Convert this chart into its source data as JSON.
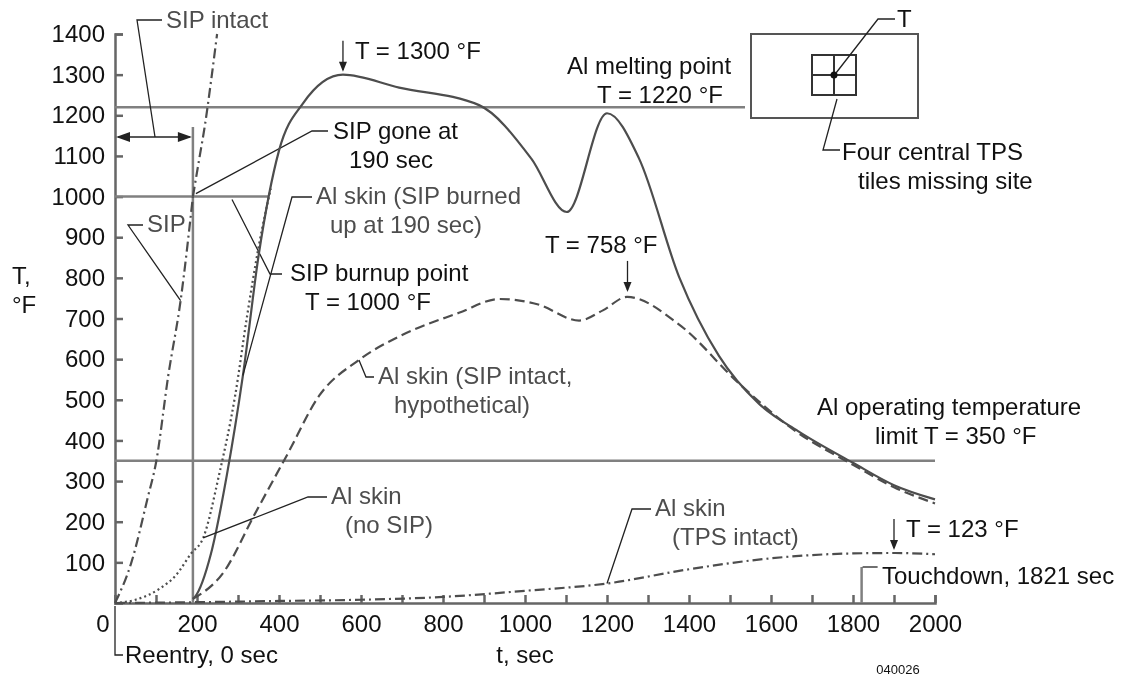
{
  "chart_data": {
    "type": "line",
    "xlabel": "t, sec",
    "ylabel": "T, °F",
    "xlim": [
      0,
      2000
    ],
    "ylim": [
      0,
      1400
    ],
    "xticks": [
      0,
      {
        "value": 100,
        "label": null
      },
      200,
      {
        "value": 300,
        "label": null
      },
      400,
      {
        "value": 500,
        "label": null
      },
      600,
      {
        "value": 700,
        "label": null
      },
      800,
      {
        "value": 900,
        "label": null
      },
      1000,
      {
        "value": 1100,
        "label": null
      },
      1200,
      {
        "value": 1300,
        "label": null
      },
      1400,
      {
        "value": 1500,
        "label": null
      },
      1600,
      {
        "value": 1700,
        "label": null
      },
      1800,
      {
        "value": 1900,
        "label": null
      },
      2000
    ],
    "yticks": [
      {
        "value": 0,
        "label": null
      },
      100,
      200,
      300,
      400,
      500,
      600,
      700,
      800,
      900,
      1000,
      1100,
      1200,
      1300,
      1400
    ],
    "grid": false,
    "legend": false,
    "series": [
      {
        "name": "SIP",
        "color": "#4d4d4d",
        "line_style": "dashdot",
        "x": [
          0,
          40,
          80,
          100,
          130,
          160,
          190
        ],
        "values": [
          0,
          100,
          260,
          345,
          560,
          744,
          1000
        ]
      },
      {
        "name": "SIP intact",
        "color": "#4d4d4d",
        "line_style": "dashdot",
        "x": [
          190,
          205,
          220,
          235,
          249
        ],
        "values": [
          1000,
          1090,
          1180,
          1290,
          1400
        ]
      },
      {
        "name": "Al skin (no SIP)",
        "color": "#4d4d4d",
        "line_style": "dotted",
        "x": [
          0,
          50,
          107,
          150,
          185,
          215,
          254,
          293,
          322,
          351,
          380
        ],
        "values": [
          0,
          8,
          34,
          70,
          121,
          160,
          316,
          510,
          705,
          880,
          1020
        ]
      },
      {
        "name": "Al skin (SIP burned up at 190 sec)",
        "color": "#4d4d4d",
        "line_style": "solid",
        "x": [
          190,
          195,
          234,
          273,
          312,
          351,
          400,
          459,
          556,
          693,
          888,
          1015,
          1102,
          1200,
          1278,
          1376,
          1473,
          1571,
          1666,
          1800,
          1900,
          2000
        ],
        "values": [
          10,
          15,
          121,
          316,
          560,
          860,
          1113,
          1230,
          1300,
          1268,
          1225,
          1094,
          962,
          1205,
          1094,
          802,
          608,
          490,
          423,
          345,
          290,
          255
        ]
      },
      {
        "name": "Al skin (SIP intact, hypothetical)",
        "color": "#4d4d4d",
        "line_style": "dashed",
        "x": [
          190,
          263,
          341,
          420,
          498,
          595,
          693,
          839,
          937,
          1030,
          1132,
          1190,
          1249,
          1376,
          1522,
          1650,
          1800,
          1900,
          2000
        ],
        "values": [
          10,
          73,
          219,
          365,
          510,
          598,
          656,
          714,
          748,
          735,
          695,
          720,
          753,
          685,
          540,
          430,
          340,
          285,
          245
        ]
      },
      {
        "name": "Al skin (TPS intact)",
        "color": "#4d4d4d",
        "line_style": "dashdot",
        "x": [
          0,
          200,
          400,
          600,
          800,
          1000,
          1200,
          1400,
          1600,
          1800,
          1900,
          2000
        ],
        "values": [
          0,
          2,
          5,
          8,
          15,
          30,
          48,
          83,
          110,
          122,
          123,
          120
        ]
      }
    ],
    "ref_lines": [
      {
        "axis": "y",
        "value": 1220,
        "label": "Al melting point T = 1220 °F",
        "color": "#808080"
      },
      {
        "axis": "y",
        "value": 350,
        "label": "Al operating temperature limit T = 350 °F",
        "color": "#808080"
      },
      {
        "axis": "y",
        "value": 1000,
        "label": "SIP burnup point T = 1000 °F",
        "color": "#808080"
      },
      {
        "axis": "x",
        "value": 190,
        "label": "SIP gone at 190 sec",
        "color": "#808080"
      },
      {
        "axis": "x",
        "value": 1821,
        "label": "Touchdown, 1821 sec",
        "color": "#808080"
      }
    ],
    "annotations": [
      {
        "text": "T = 1300 °F",
        "x": 556,
        "y": 1300
      },
      {
        "text": "T = 758 °F",
        "x": 1250,
        "y": 758
      },
      {
        "text": "T = 123 °F",
        "x": 1900,
        "y": 123
      },
      {
        "text": "Reentry, 0 sec",
        "x": 0,
        "y": 0
      },
      "T",
      "Four central TPS tiles missing site",
      "040026"
    ]
  }
}
